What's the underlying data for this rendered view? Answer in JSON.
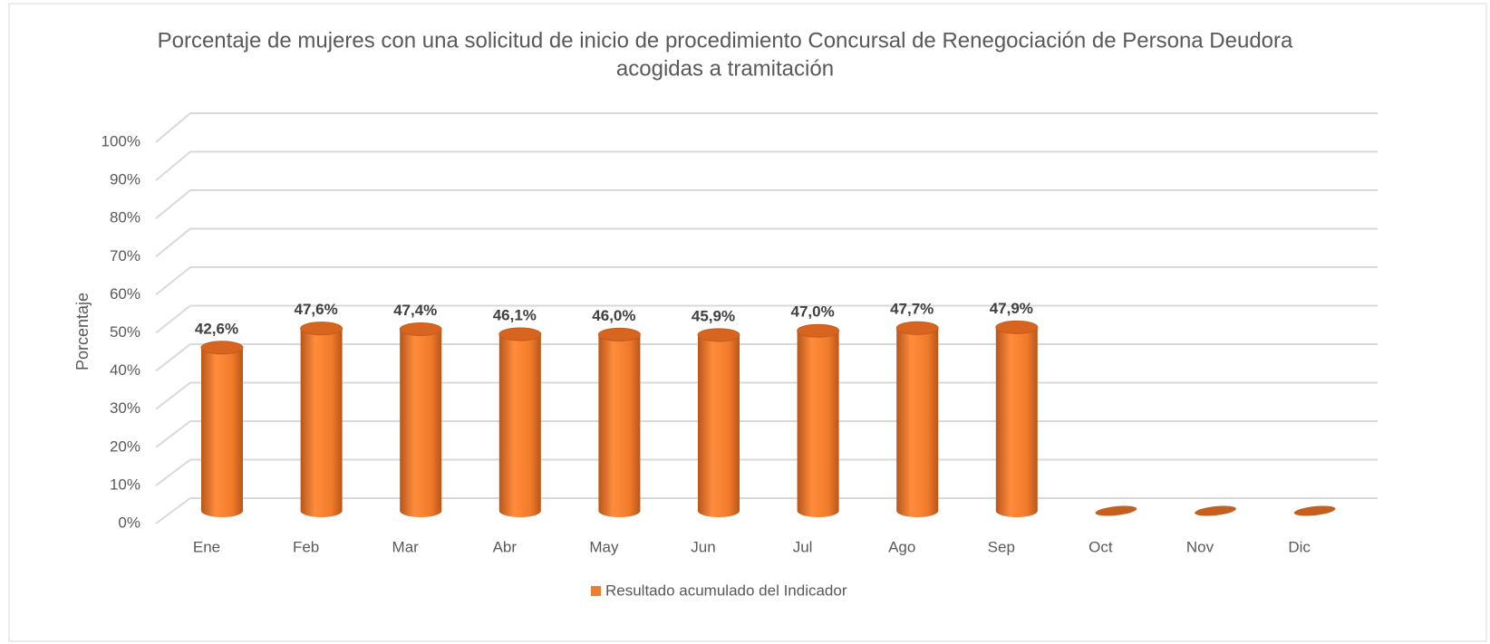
{
  "chart_data": {
    "type": "bar3d",
    "title": [
      "Porcentaje de mujeres con una solicitud de inicio de procedimiento Concursal de Renegociación de Persona Deudora",
      "acogidas a tramitación"
    ],
    "y_label": "Porcentaje",
    "categories": [
      "Ene",
      "Feb",
      "Mar",
      "Abr",
      "May",
      "Jun",
      "Jul",
      "Ago",
      "Sep",
      "Oct",
      "Nov",
      "Dic"
    ],
    "series": [
      {
        "name": "Resultado acumulado del Indicador",
        "color": "#ed7d31",
        "values": [
          42.6,
          47.6,
          47.4,
          46.1,
          46.0,
          45.9,
          47.0,
          47.7,
          47.9,
          null,
          null,
          null
        ],
        "value_labels": [
          "42,6%",
          "47,6%",
          "47,4%",
          "46,1%",
          "46,0%",
          "45,9%",
          "47,0%",
          "47,7%",
          "47,9%",
          null,
          null,
          null
        ]
      }
    ],
    "ylim": [
      0,
      100
    ],
    "yticks": [
      {
        "value": 0,
        "label": "0%"
      },
      {
        "value": 10,
        "label": "10%"
      },
      {
        "value": 20,
        "label": "20%"
      },
      {
        "value": 30,
        "label": "30%"
      },
      {
        "value": 40,
        "label": "40%"
      },
      {
        "value": 50,
        "label": "50%"
      },
      {
        "value": 60,
        "label": "60%"
      },
      {
        "value": 70,
        "label": "70%"
      },
      {
        "value": 80,
        "label": "80%"
      },
      {
        "value": 90,
        "label": "90%"
      },
      {
        "value": 100,
        "label": "100%"
      }
    ],
    "grid": true,
    "legend": "bottom"
  }
}
